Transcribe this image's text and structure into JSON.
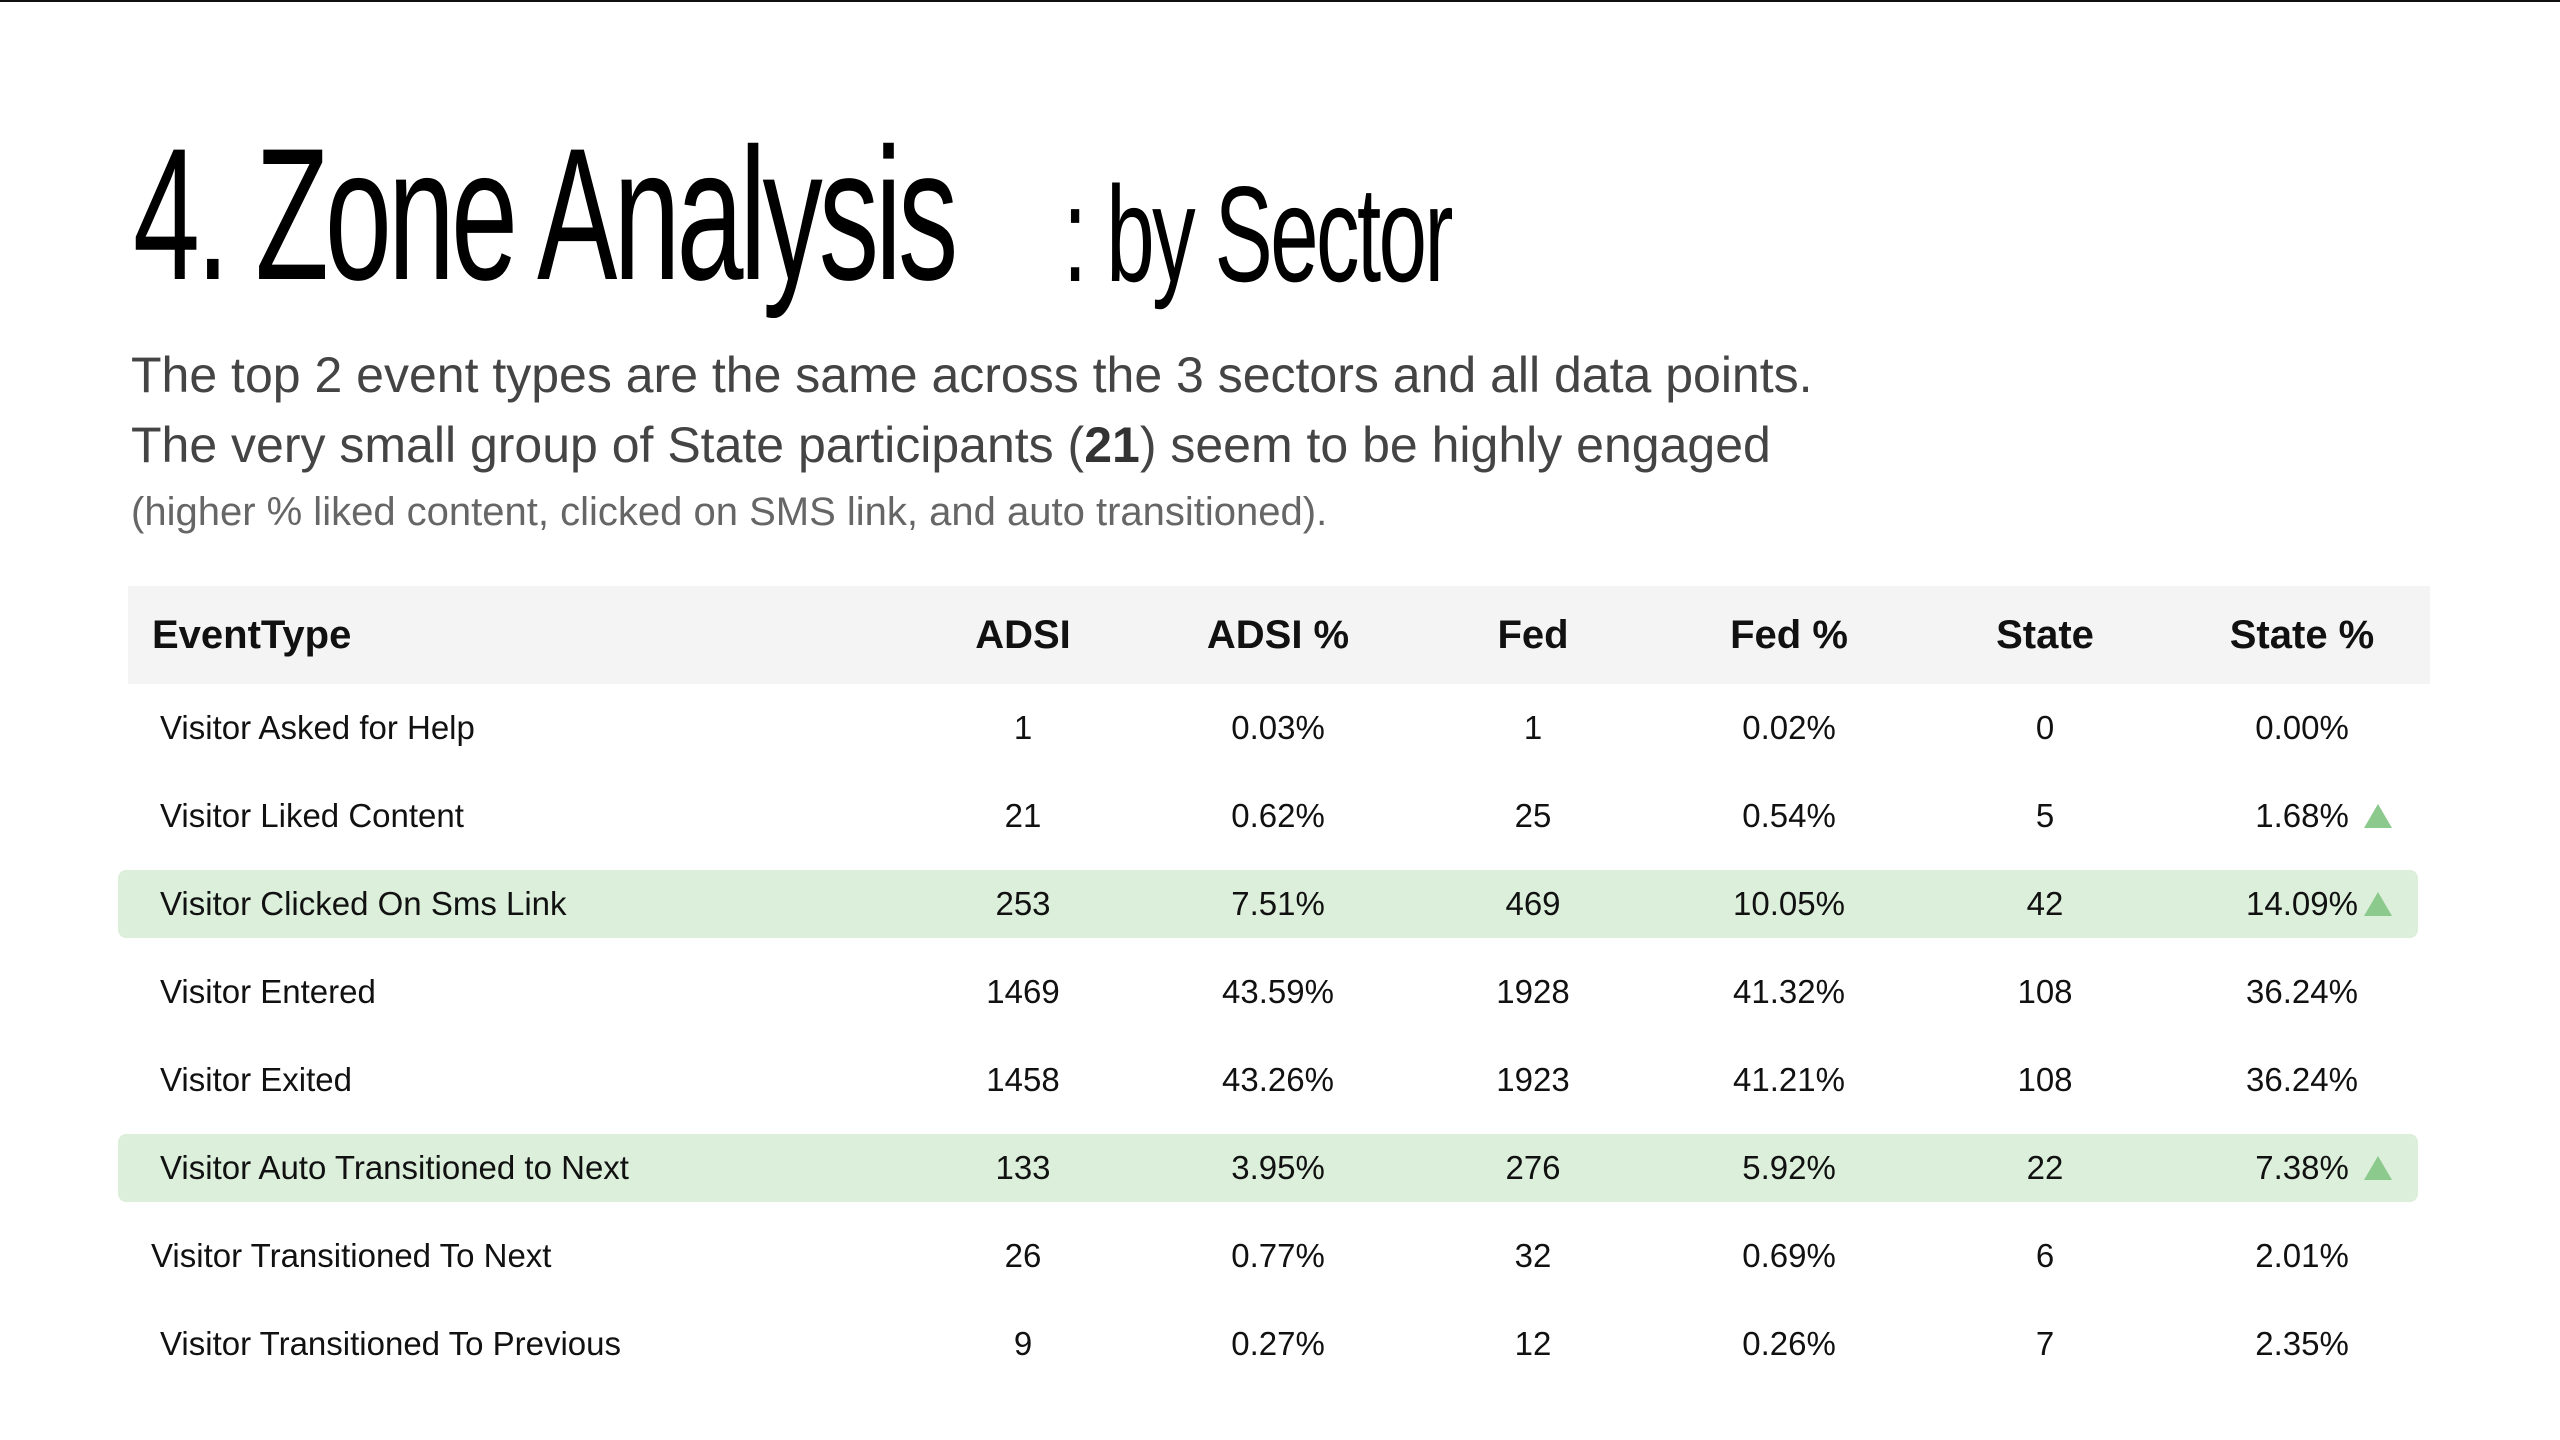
{
  "slide": {
    "title_main": "4. Zone Analysis",
    "title_sub": ": by Sector",
    "desc_line1": "The top 2 event types are the same across the 3 sectors and all data points.",
    "desc_line2_before": "The very small group of State participants (",
    "desc_line2_bold": "21",
    "desc_line2_after": ") seem to be highly engaged",
    "desc_line3": "(higher % liked content, clicked on SMS link, and auto transitioned)."
  },
  "table": {
    "columns": [
      "EventType",
      "ADSI",
      "ADSI %",
      "Fed",
      "Fed %",
      "State",
      "State %"
    ],
    "rows": [
      {
        "event": "Visitor Asked for Help",
        "adsi": "1",
        "adsi_pct": "0.03%",
        "fed": "1",
        "fed_pct": "0.02%",
        "state": "0",
        "state_pct": "0.00%",
        "highlight": false,
        "up": false
      },
      {
        "event": "Visitor Liked Content",
        "adsi": "21",
        "adsi_pct": "0.62%",
        "fed": "25",
        "fed_pct": "0.54%",
        "state": "5",
        "state_pct": "1.68%",
        "highlight": false,
        "up": true
      },
      {
        "event": "Visitor Clicked On Sms Link",
        "adsi": "253",
        "adsi_pct": "7.51%",
        "fed": "469",
        "fed_pct": "10.05%",
        "state": "42",
        "state_pct": "14.09%",
        "highlight": true,
        "up": true
      },
      {
        "event": "Visitor Entered",
        "adsi": "1469",
        "adsi_pct": "43.59%",
        "fed": "1928",
        "fed_pct": "41.32%",
        "state": "108",
        "state_pct": "36.24%",
        "highlight": false,
        "up": false
      },
      {
        "event": "Visitor Exited",
        "adsi": "1458",
        "adsi_pct": "43.26%",
        "fed": "1923",
        "fed_pct": "41.21%",
        "state": "108",
        "state_pct": "36.24%",
        "highlight": false,
        "up": false
      },
      {
        "event": "Visitor Auto Transitioned to Next",
        "adsi": "133",
        "adsi_pct": "3.95%",
        "fed": "276",
        "fed_pct": "5.92%",
        "state": "22",
        "state_pct": "7.38%",
        "highlight": true,
        "up": true
      },
      {
        "event": "Visitor Transitioned To Next",
        "adsi": "26",
        "adsi_pct": "0.77%",
        "fed": "32",
        "fed_pct": "0.69%",
        "state": "6",
        "state_pct": "2.01%",
        "highlight": false,
        "up": false
      },
      {
        "event": "Visitor Transitioned To Previous",
        "adsi": "9",
        "adsi_pct": "0.27%",
        "fed": "12",
        "fed_pct": "0.26%",
        "state": "7",
        "state_pct": "2.35%",
        "highlight": false,
        "up": false
      }
    ]
  },
  "colors": {
    "highlight_row": "#dcefdb",
    "up_arrow": "#8cc98c",
    "header_bg": "#f4f4f4"
  },
  "icons": {
    "up": "triangle-up-icon"
  }
}
